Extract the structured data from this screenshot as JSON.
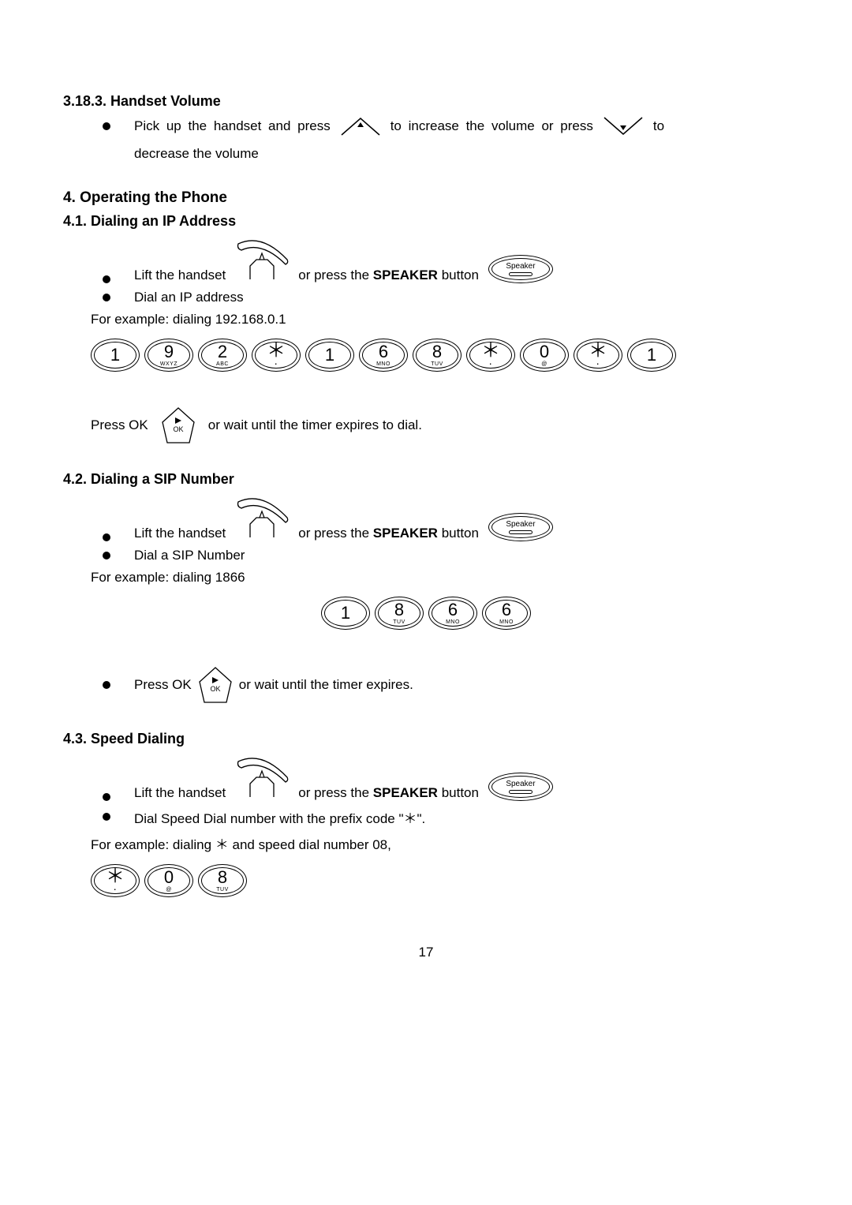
{
  "colors": {
    "text": "#000000",
    "bg": "#ffffff",
    "line": "#000000"
  },
  "sec_3_18_3": {
    "heading": "3.18.3.  Handset Volume",
    "line_a": "Pick  up  the  handset  and  press",
    "line_b": "to  increase  the  volume  or  press",
    "line_c": "to",
    "line2": "decrease the volume"
  },
  "sec_4": {
    "heading": "4.   Operating the Phone"
  },
  "sec_4_1": {
    "heading": "4.1.  Dialing an IP Address",
    "lift": "Lift the handset",
    "or_press": "or press the",
    "speaker_word": "SPEAKER",
    "button_word": "button",
    "dial_ip": "Dial an IP address",
    "example": "For example: dialing 192.168.0.1",
    "press_ok": "Press OK",
    "timer": "or wait until the timer expires to dial."
  },
  "sec_4_2": {
    "heading": "4.2.  Dialing a SIP Number",
    "dial_sip": "Dial a SIP Number",
    "example": "For example: dialing 1866",
    "press_ok": "Press OK",
    "timer": "or wait until the timer expires."
  },
  "sec_4_3": {
    "heading": "4.3.  Speed Dialing",
    "dial_speed": "Dial Speed Dial number with the prefix code \"＊\".",
    "example": "For example: dialing  ＊  and speed dial number 08,"
  },
  "speaker_label": "Speaker",
  "ok_label": "OK",
  "keys": {
    "k0": {
      "n": "0",
      "s": "@"
    },
    "k1": {
      "n": "1",
      "s": ""
    },
    "k2": {
      "n": "2",
      "s": "ABC"
    },
    "k6": {
      "n": "6",
      "s": "MNO"
    },
    "k8": {
      "n": "8",
      "s": "TUV"
    },
    "k9": {
      "n": "9",
      "s": "WXYZ"
    },
    "star": {
      "n": "＊",
      "s": "."
    }
  },
  "keypad_ip": [
    "k1",
    "k9",
    "k2",
    "star",
    "k1",
    "k6",
    "k8",
    "star",
    "k0",
    "star",
    "k1"
  ],
  "keypad_sip": [
    "k1",
    "k8",
    "k6",
    "k6"
  ],
  "keypad_spd": [
    "star",
    "k0",
    "k8"
  ],
  "page_number": "17"
}
